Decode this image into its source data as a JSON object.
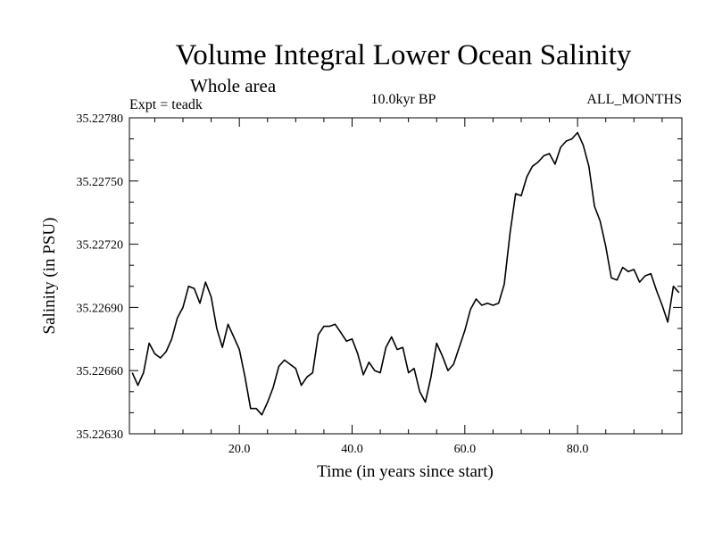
{
  "chart_data": {
    "type": "line",
    "title": "Volume Integral Lower Ocean Salinity",
    "subtitle": "Whole area",
    "header_left": "Expt = teadk",
    "header_center": "10.0kyr BP",
    "header_right": "ALL_MONTHS",
    "xlabel": "Time (in years since start)",
    "ylabel": "Salinity (in PSU)",
    "xlim": [
      0.5,
      98.5
    ],
    "ylim": [
      35.2263,
      35.2278
    ],
    "xticks": [
      20,
      40,
      60,
      80
    ],
    "xtick_labels": [
      "20.0",
      "40.0",
      "60.0",
      "80.0"
    ],
    "yticks": [
      35.2263,
      35.2266,
      35.2269,
      35.2272,
      35.2275,
      35.2278
    ],
    "ytick_labels": [
      "35.22630",
      "35.22660",
      "35.22690",
      "35.22720",
      "35.22750",
      "35.22780"
    ],
    "series": [
      {
        "name": "Salinity",
        "x": [
          1,
          2,
          3,
          4,
          5,
          6,
          7,
          8,
          9,
          10,
          11,
          12,
          13,
          14,
          15,
          16,
          17,
          18,
          19,
          20,
          21,
          22,
          23,
          24,
          25,
          26,
          27,
          28,
          29,
          30,
          31,
          32,
          33,
          34,
          35,
          36,
          37,
          38,
          39,
          40,
          41,
          42,
          43,
          44,
          45,
          46,
          47,
          48,
          49,
          50,
          51,
          52,
          53,
          54,
          55,
          56,
          57,
          58,
          59,
          60,
          61,
          62,
          63,
          64,
          65,
          66,
          67,
          68,
          69,
          70,
          71,
          72,
          73,
          74,
          75,
          76,
          77,
          78,
          79,
          80,
          81,
          82,
          83,
          84,
          85,
          86,
          87,
          88,
          89,
          90,
          91,
          92,
          93,
          94,
          95,
          96,
          97,
          98
        ],
        "values": [
          35.22659,
          35.22653,
          35.22659,
          35.22673,
          35.22668,
          35.22666,
          35.22669,
          35.22675,
          35.22685,
          35.2269,
          35.227,
          35.22699,
          35.22692,
          35.22702,
          35.22695,
          35.2268,
          35.22671,
          35.22682,
          35.22676,
          35.2267,
          35.22657,
          35.22642,
          35.22642,
          35.22639,
          35.22645,
          35.22652,
          35.22662,
          35.22665,
          35.22663,
          35.22661,
          35.22653,
          35.22657,
          35.22659,
          35.22677,
          35.22681,
          35.22681,
          35.22682,
          35.22678,
          35.22674,
          35.22675,
          35.22668,
          35.22658,
          35.22664,
          35.2266,
          35.22659,
          35.22671,
          35.22676,
          35.2267,
          35.22671,
          35.22659,
          35.22661,
          35.2265,
          35.22645,
          35.22657,
          35.22673,
          35.22667,
          35.2266,
          35.22663,
          35.22671,
          35.22679,
          35.22689,
          35.22694,
          35.22691,
          35.22692,
          35.22691,
          35.22692,
          35.22701,
          35.22725,
          35.22744,
          35.22743,
          35.22752,
          35.22757,
          35.22759,
          35.22762,
          35.22763,
          35.22758,
          35.22766,
          35.22769,
          35.2277,
          35.22773,
          35.22767,
          35.22757,
          35.22738,
          35.22731,
          35.22719,
          35.22704,
          35.22703,
          35.22709,
          35.22707,
          35.22708,
          35.22702,
          35.22705,
          35.22706,
          35.22698,
          35.22691,
          35.22683,
          35.227,
          35.22697
        ]
      }
    ]
  }
}
